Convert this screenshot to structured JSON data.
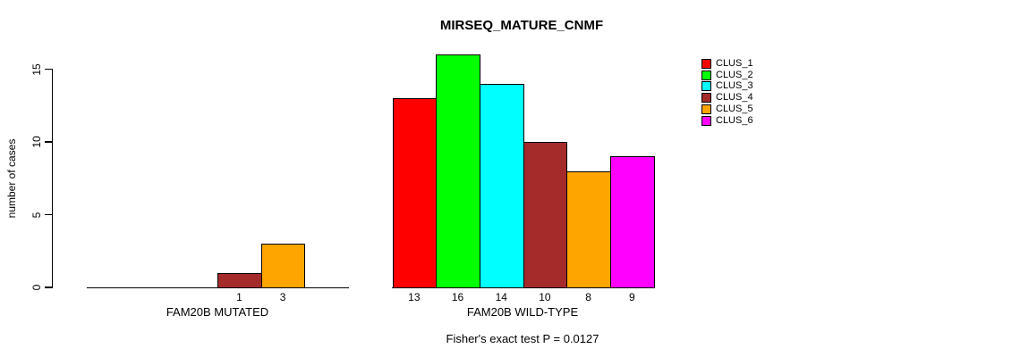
{
  "title": "MIRSEQ_MATURE_CNMF",
  "footer": "Fisher's exact test P = 0.0127",
  "legend": {
    "items": [
      {
        "label": "CLUS_1",
        "color": "#ff0000"
      },
      {
        "label": "CLUS_2",
        "color": "#00ff00"
      },
      {
        "label": "CLUS_3",
        "color": "#00ffff"
      },
      {
        "label": "CLUS_4",
        "color": "#a52a2a"
      },
      {
        "label": "CLUS_5",
        "color": "#ffa500"
      },
      {
        "label": "CLUS_6",
        "color": "#ff00ff"
      }
    ]
  },
  "chart_data": {
    "type": "bar",
    "title": "MIRSEQ_MATURE_CNMF",
    "ylabel": "number of cases",
    "xlabel": "",
    "ylim": [
      0,
      16.5
    ],
    "y_ticks": [
      0,
      5,
      10,
      15
    ],
    "grid": false,
    "legend_position": "top-right",
    "series_names": [
      "CLUS_1",
      "CLUS_2",
      "CLUS_3",
      "CLUS_4",
      "CLUS_5",
      "CLUS_6"
    ],
    "colors": [
      "#ff0000",
      "#00ff00",
      "#00ffff",
      "#a52a2a",
      "#ffa500",
      "#ff00ff"
    ],
    "groups": [
      {
        "label": "FAM20B MUTATED",
        "values": [
          0,
          0,
          0,
          1,
          3,
          0
        ],
        "bar_labels": [
          "",
          "",
          "",
          "1",
          "3",
          ""
        ]
      },
      {
        "label": "FAM20B WILD-TYPE",
        "values": [
          13,
          16,
          14,
          10,
          8,
          9
        ],
        "bar_labels": [
          "13",
          "16",
          "14",
          "10",
          "8",
          "9"
        ]
      }
    ],
    "annotation": "Fisher's exact test P = 0.0127"
  }
}
